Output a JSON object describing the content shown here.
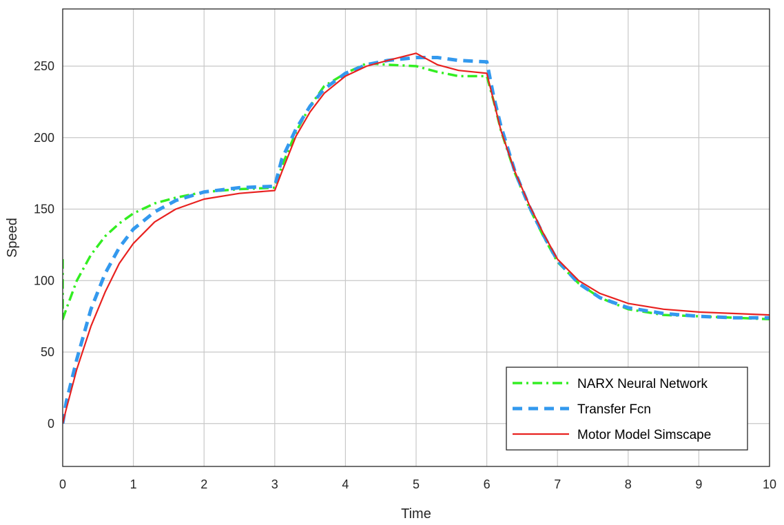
{
  "chart_data": {
    "type": "line",
    "title": "",
    "xlabel": "Time",
    "ylabel": "Speed",
    "xlim": [
      0,
      10
    ],
    "ylim": [
      -30,
      290
    ],
    "xticks": [
      0,
      1,
      2,
      3,
      4,
      5,
      6,
      7,
      8,
      9,
      10
    ],
    "yticks": [
      0,
      50,
      100,
      150,
      200,
      250
    ],
    "grid": true,
    "legend_position": "bottom-right",
    "series": [
      {
        "name": "NARX Neural Network",
        "color": "#33ee22",
        "style": "dash-dot",
        "x": [
          0,
          0,
          0.05,
          0.2,
          0.4,
          0.6,
          0.8,
          1.0,
          1.3,
          1.6,
          2.0,
          2.5,
          3.0,
          3.1,
          3.3,
          3.5,
          3.7,
          4.0,
          4.3,
          4.6,
          5.0,
          5.3,
          5.6,
          6.0,
          6.1,
          6.2,
          6.4,
          6.6,
          6.8,
          7.0,
          7.3,
          7.6,
          8.0,
          8.5,
          9.0,
          9.5,
          10.0
        ],
        "y": [
          115,
          73,
          80,
          100,
          118,
          131,
          140,
          147,
          154,
          158,
          162,
          164,
          165,
          180,
          204,
          222,
          236,
          245,
          252,
          251,
          250,
          246,
          243,
          243,
          225,
          205,
          175,
          151,
          131,
          113,
          98,
          88,
          80,
          76,
          75,
          74,
          73
        ]
      },
      {
        "name": "Transfer Fcn",
        "color": "#3399ee",
        "style": "dashed",
        "x": [
          0,
          0.05,
          0.2,
          0.4,
          0.6,
          0.8,
          1.0,
          1.3,
          1.6,
          2.0,
          2.5,
          3.0,
          3.1,
          3.3,
          3.5,
          3.7,
          4.0,
          4.3,
          4.6,
          5.0,
          5.3,
          5.6,
          6.0,
          6.1,
          6.2,
          6.4,
          6.6,
          6.8,
          7.0,
          7.3,
          7.6,
          8.0,
          8.5,
          9.0,
          9.5,
          10.0
        ],
        "y": [
          0,
          15,
          45,
          80,
          105,
          123,
          136,
          148,
          156,
          162,
          165,
          166,
          185,
          206,
          222,
          234,
          245,
          251,
          254,
          256,
          256,
          254,
          253,
          228,
          208,
          176,
          152,
          132,
          114,
          98,
          88,
          81,
          77,
          75,
          74,
          74
        ]
      },
      {
        "name": "Motor Model Simscape",
        "color": "#e8211f",
        "style": "solid",
        "x": [
          0,
          0.05,
          0.2,
          0.4,
          0.6,
          0.8,
          1.0,
          1.3,
          1.6,
          2.0,
          2.5,
          3.0,
          3.1,
          3.3,
          3.5,
          3.7,
          4.0,
          4.3,
          4.6,
          5.0,
          5.3,
          5.6,
          6.0,
          6.1,
          6.2,
          6.4,
          6.6,
          6.8,
          7.0,
          7.3,
          7.6,
          8.0,
          8.5,
          9.0,
          9.5,
          10.0
        ],
        "y": [
          0,
          10,
          38,
          68,
          92,
          112,
          126,
          141,
          150,
          157,
          161,
          163,
          176,
          201,
          218,
          231,
          243,
          250,
          254,
          259,
          251,
          247,
          245,
          225,
          205,
          176,
          153,
          133,
          115,
          100,
          91,
          84,
          80,
          78,
          77,
          76
        ]
      }
    ]
  }
}
